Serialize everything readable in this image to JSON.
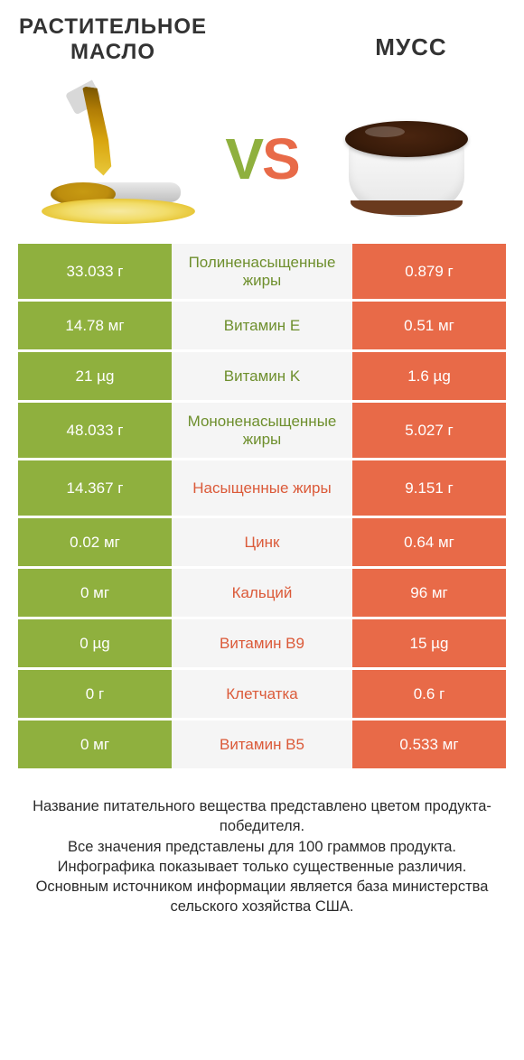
{
  "colors": {
    "green": "#8fb03e",
    "orange": "#e86a48",
    "green_text": "#6e8f2d",
    "orange_text": "#db5a39",
    "mid_bg": "#f5f5f5",
    "page_bg": "#ffffff"
  },
  "header": {
    "left": "РАСТИТЕЛЬНОЕ МАСЛО",
    "right": "МУСС"
  },
  "vs": {
    "v": "V",
    "s": "S"
  },
  "rows": [
    {
      "left": "33.033 г",
      "mid": "Полиненасыщенные жиры",
      "right": "0.879 г",
      "winner": "left",
      "tall": true
    },
    {
      "left": "14.78 мг",
      "mid": "Витамин E",
      "right": "0.51 мг",
      "winner": "left",
      "tall": false
    },
    {
      "left": "21 µg",
      "mid": "Витамин K",
      "right": "1.6 µg",
      "winner": "left",
      "tall": false
    },
    {
      "left": "48.033 г",
      "mid": "Мононенасыщенные жиры",
      "right": "5.027 г",
      "winner": "left",
      "tall": true
    },
    {
      "left": "14.367 г",
      "mid": "Насыщенные жиры",
      "right": "9.151 г",
      "winner": "right",
      "tall": true
    },
    {
      "left": "0.02 мг",
      "mid": "Цинк",
      "right": "0.64 мг",
      "winner": "right",
      "tall": false
    },
    {
      "left": "0 мг",
      "mid": "Кальций",
      "right": "96 мг",
      "winner": "right",
      "tall": false
    },
    {
      "left": "0 µg",
      "mid": "Витамин B9",
      "right": "15 µg",
      "winner": "right",
      "tall": false
    },
    {
      "left": "0 г",
      "mid": "Клетчатка",
      "right": "0.6 г",
      "winner": "right",
      "tall": false
    },
    {
      "left": "0 мг",
      "mid": "Витамин B5",
      "right": "0.533 мг",
      "winner": "right",
      "tall": false
    }
  ],
  "footer": {
    "l1": "Название питательного вещества представлено цветом продукта-победителя.",
    "l2": "Все значения представлены для 100 граммов продукта.",
    "l3": "Инфографика показывает только существенные различия.",
    "l4": "Основным источником информации является база министерства сельского хозяйства США."
  }
}
